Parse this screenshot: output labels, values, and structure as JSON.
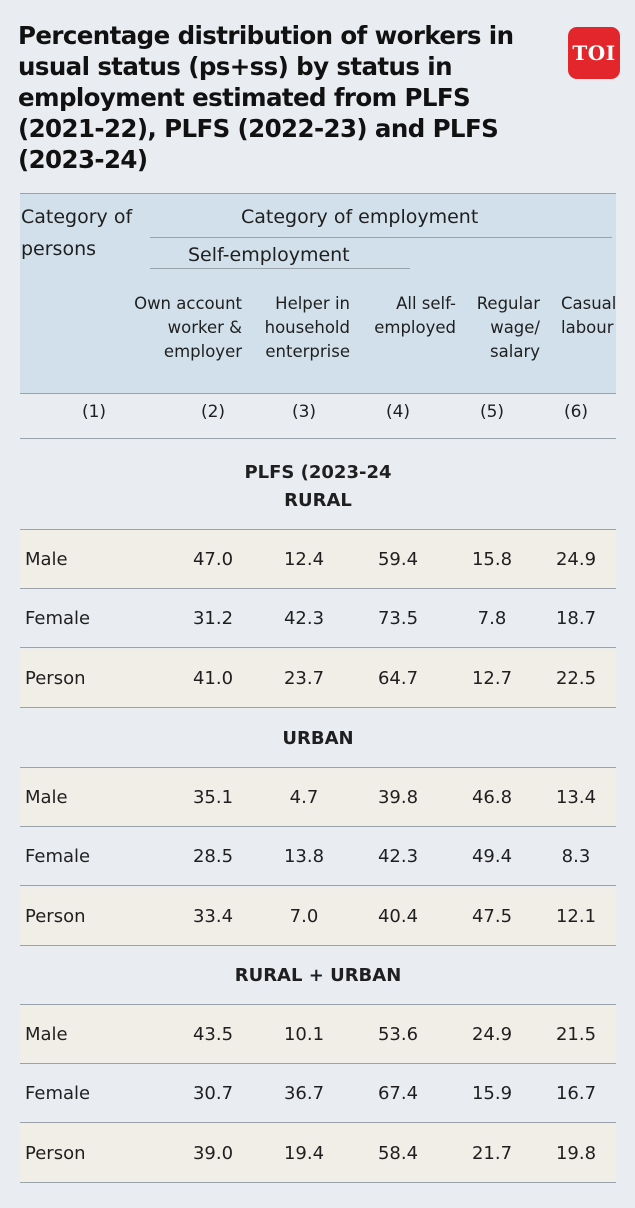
{
  "title": "Percentage distribution of workers in usual status (ps+ss) by status in employment estimated from PLFS (2021-22), PLFS (2022-23) and PLFS (2023-24)",
  "logo": "TOI",
  "header": {
    "category_of_persons_line1": "Category of",
    "category_of_persons_line2": "persons",
    "category_of_employment": "Category of employment",
    "self_employment": "Self-employment",
    "columns": [
      [
        "Own account",
        "worker &",
        "employer"
      ],
      [
        "Helper in",
        "household",
        "enterprise"
      ],
      [
        "All self-",
        "employed"
      ],
      [
        "Regular",
        "wage/",
        "salary"
      ],
      [
        "Casual",
        "labour"
      ]
    ],
    "column_numbers": [
      "(1)",
      "(2)",
      "(3)",
      "(4)",
      "(5)",
      "(6)"
    ]
  },
  "chart_data": {
    "type": "table",
    "title": "Percentage distribution of workers in usual status (ps+ss) by status in employment estimated from PLFS (2021-22), PLFS (2022-23) and PLFS (2023-24)",
    "period_label": "PLFS (2023-24",
    "columns": [
      "Category of persons",
      "Own account worker & employer",
      "Helper in household enterprise",
      "All self-employed",
      "Regular wage/ salary",
      "Casual labour"
    ],
    "sections": [
      {
        "name": "RURAL",
        "rows": [
          {
            "label": "Male",
            "values": [
              "47.0",
              "12.4",
              "59.4",
              "15.8",
              "24.9"
            ]
          },
          {
            "label": "Female",
            "values": [
              "31.2",
              "42.3",
              "73.5",
              "7.8",
              "18.7"
            ]
          },
          {
            "label": "Person",
            "values": [
              "41.0",
              "23.7",
              "64.7",
              "12.7",
              "22.5"
            ]
          }
        ]
      },
      {
        "name": "URBAN",
        "rows": [
          {
            "label": "Male",
            "values": [
              "35.1",
              "4.7",
              "39.8",
              "46.8",
              "13.4"
            ]
          },
          {
            "label": "Female",
            "values": [
              "28.5",
              "13.8",
              "42.3",
              "49.4",
              "8.3"
            ]
          },
          {
            "label": "Person",
            "values": [
              "33.4",
              "7.0",
              "40.4",
              "47.5",
              "12.1"
            ]
          }
        ]
      },
      {
        "name": "RURAL + URBAN",
        "rows": [
          {
            "label": "Male",
            "values": [
              "43.5",
              "10.1",
              "53.6",
              "24.9",
              "21.5"
            ]
          },
          {
            "label": "Female",
            "values": [
              "30.7",
              "36.7",
              "67.4",
              "15.9",
              "16.7"
            ]
          },
          {
            "label": "Person",
            "values": [
              "39.0",
              "19.4",
              "58.4",
              "21.7",
              "19.8"
            ]
          }
        ]
      }
    ]
  }
}
